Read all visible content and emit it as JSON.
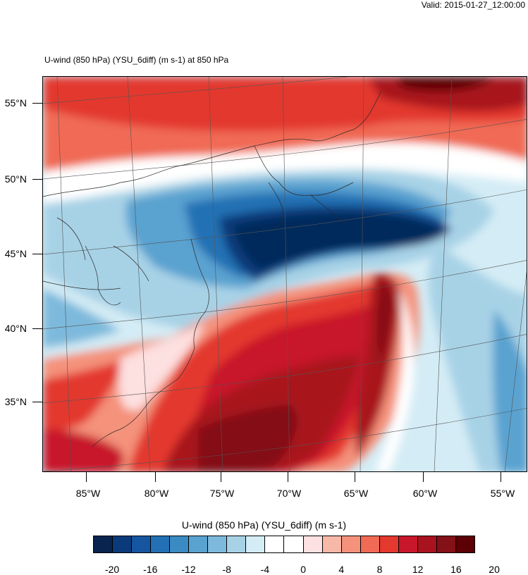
{
  "valid_text": "Valid: 2015-01-27_12:00:00",
  "subtitle": "U-wind (850 hPa) (YSU_6diff)   (m s-1)     at   850 hPa",
  "lat_labels": [
    "55°N",
    "50°N",
    "45°N",
    "40°N",
    "35°N"
  ],
  "lon_labels": [
    "85°W",
    "80°W",
    "75°W",
    "70°W",
    "65°W",
    "60°W",
    "55°W"
  ],
  "colorbar": {
    "title": "U-wind (850 hPa) (YSU_6diff)  (m s-1)",
    "tick_labels": [
      "-20",
      "-16",
      "-12",
      "-8",
      "-4",
      "0",
      "4",
      "8",
      "12",
      "16",
      "20"
    ],
    "colors": [
      "#08244f",
      "#0b3a7a",
      "#1656a0",
      "#2371b4",
      "#3a8bc3",
      "#5aa2d0",
      "#7db9dc",
      "#a7d2e6",
      "#d4ecf5",
      "#ffffff",
      "#ffffff",
      "#fde0e0",
      "#f7b8a8",
      "#f4927c",
      "#f06a55",
      "#e3392f",
      "#c8172a",
      "#a8131f",
      "#841018",
      "#5c0006"
    ]
  },
  "colors": {
    "deep_red": "#7c0a14",
    "red": "#d2232b",
    "light_red": "#f4927c",
    "pale_red": "#fde0e0",
    "deep_blue": "#062a5c",
    "blue": "#2a78b8",
    "light_blue": "#8fc4e0",
    "pale_blue": "#d4ecf5"
  }
}
